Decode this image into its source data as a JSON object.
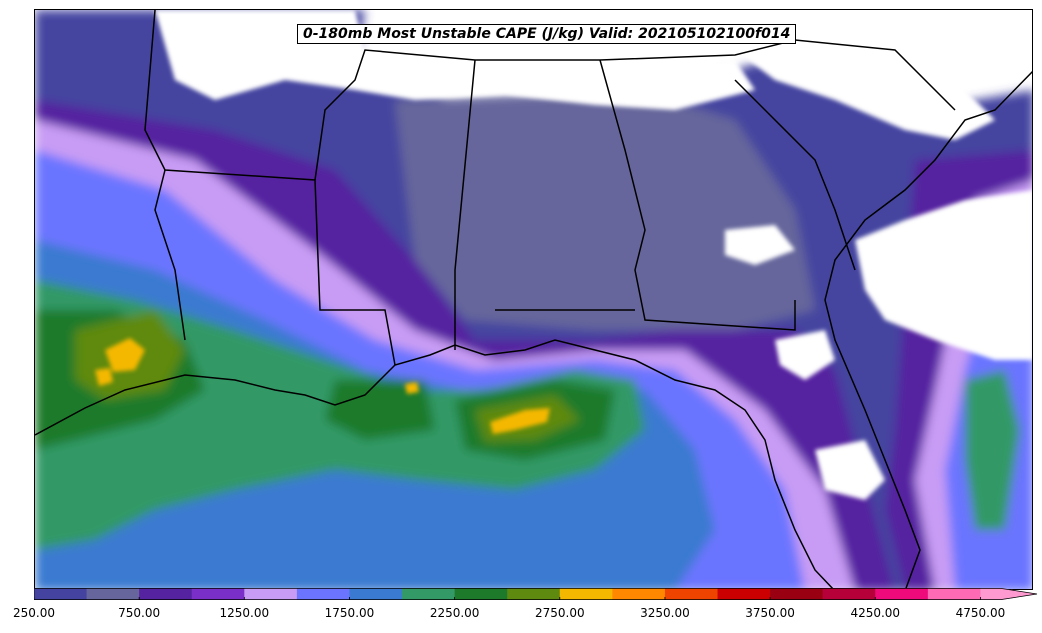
{
  "title": "0-180mb Most Unstable CAPE (J/kg) Valid: 202105102100f014",
  "colorbar": {
    "min": 250,
    "max": 5000,
    "step": 250,
    "extend": "max",
    "tick_labels": [
      "250.00",
      "750.00",
      "1250.00",
      "1750.00",
      "2250.00",
      "2750.00",
      "3250.00",
      "3750.00",
      "4250.00",
      "4750.00"
    ],
    "colors": [
      "#4444a0",
      "#66669c",
      "#5522a0",
      "#7a30c8",
      "#c89cf4",
      "#6a74ff",
      "#3a7ad0",
      "#339966",
      "#1d7a2a",
      "#5e8a10",
      "#f5b800",
      "#ff8800",
      "#ee4400",
      "#cc0000",
      "#990011",
      "#b5003a",
      "#ee0a7a",
      "#ff6ab5",
      "#ff9ad0"
    ]
  },
  "map_colors": {
    "background": "#ffffff",
    "borders": "#000000"
  }
}
